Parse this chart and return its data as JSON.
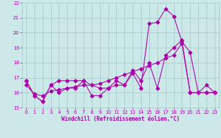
{
  "background_color": "#cce8e8",
  "grid_color": "#aacccc",
  "line_color": "#aa00aa",
  "markersize": 2.5,
  "xlabel": "Windchill (Refroidissement éolien,°C)",
  "xlim": [
    -0.5,
    23.5
  ],
  "ylim": [
    15,
    22
  ],
  "yticks": [
    15,
    16,
    17,
    18,
    19,
    20,
    21,
    22
  ],
  "xticks": [
    0,
    1,
    2,
    3,
    4,
    5,
    6,
    7,
    8,
    9,
    10,
    11,
    12,
    13,
    14,
    15,
    16,
    17,
    18,
    19,
    20,
    21,
    22,
    23
  ],
  "series1_x": [
    0,
    1,
    2,
    3,
    4,
    5,
    6,
    7,
    8,
    9,
    10,
    11,
    12,
    13,
    14,
    15,
    16,
    17,
    18,
    19,
    20,
    21,
    22,
    23
  ],
  "series1_y": [
    16.8,
    15.8,
    15.4,
    16.5,
    16.8,
    16.8,
    16.8,
    16.8,
    15.8,
    15.8,
    16.3,
    16.5,
    16.5,
    17.3,
    16.3,
    20.6,
    20.7,
    21.6,
    21.1,
    19.4,
    18.7,
    16.0,
    16.5,
    16.0
  ],
  "series2_x": [
    0,
    1,
    2,
    3,
    4,
    5,
    6,
    7,
    8,
    9,
    10,
    11,
    12,
    13,
    14,
    15,
    16,
    17,
    18,
    19,
    20,
    21,
    22,
    23
  ],
  "series2_y": [
    16.5,
    15.9,
    15.8,
    16.1,
    16.2,
    16.3,
    16.4,
    16.5,
    16.5,
    16.6,
    16.8,
    17.0,
    17.2,
    17.4,
    17.6,
    17.8,
    18.0,
    18.3,
    18.5,
    19.3,
    16.0,
    16.0,
    16.0,
    16.0
  ],
  "series3_x": [
    0,
    1,
    2,
    3,
    4,
    5,
    6,
    7,
    8,
    9,
    10,
    11,
    12,
    13,
    14,
    15,
    16,
    17,
    18,
    19,
    20,
    21,
    22,
    23
  ],
  "series3_y": [
    16.8,
    15.8,
    15.4,
    16.5,
    16.0,
    16.3,
    16.3,
    16.8,
    16.5,
    16.3,
    16.3,
    16.8,
    16.5,
    17.5,
    16.8,
    18.0,
    16.3,
    18.5,
    19.0,
    19.5,
    16.0,
    16.0,
    16.0,
    16.0
  ]
}
